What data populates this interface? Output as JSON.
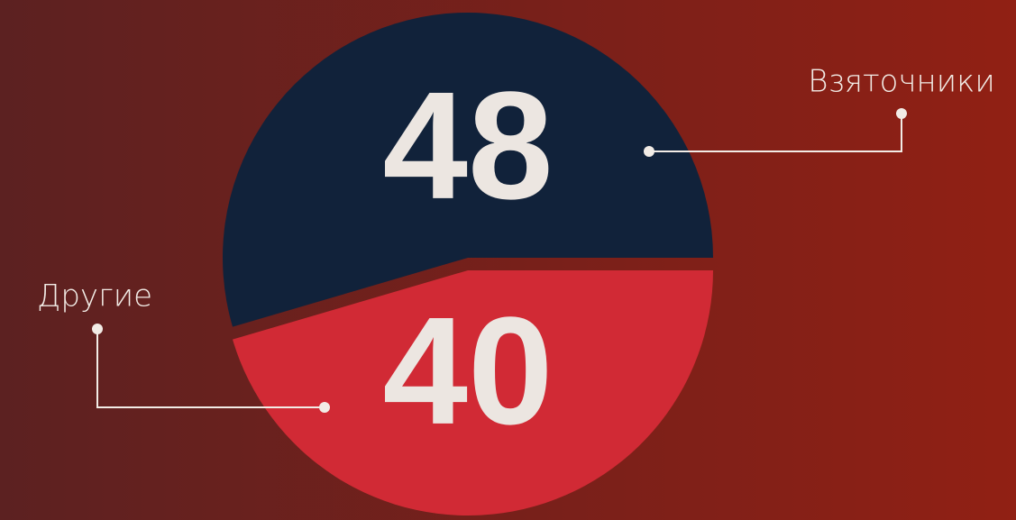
{
  "chart_data": {
    "type": "pie",
    "categories": [
      "Взяточники",
      "Другие"
    ],
    "values": [
      48,
      40
    ],
    "colors": [
      "#11223a",
      "#d12a35"
    ]
  }
}
